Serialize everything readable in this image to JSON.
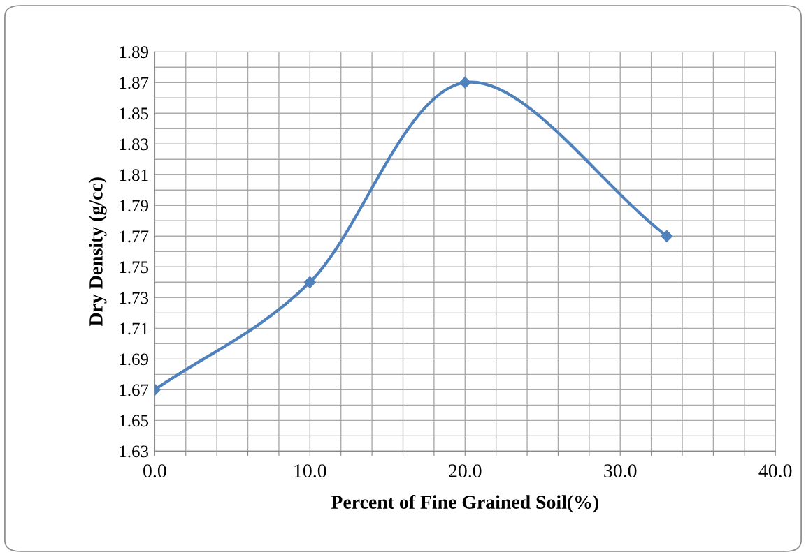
{
  "chart_data": {
    "type": "line",
    "xlabel": "Percent of Fine Grained Soil(%)",
    "ylabel": "Dry Density (g/cc)",
    "x": [
      0,
      10,
      20,
      33
    ],
    "series": [
      {
        "color": "#4f81bd",
        "values": [
          1.67,
          1.74,
          1.87,
          1.77
        ]
      }
    ],
    "marker": "diamond",
    "line_style": "solid",
    "grid": true,
    "legend": false,
    "xlim": [
      0,
      40
    ],
    "ylim": [
      1.63,
      1.89
    ],
    "xticks": [
      {
        "value": 0,
        "label": "0.0"
      },
      {
        "value": 2,
        "label": null
      },
      {
        "value": 4,
        "label": null
      },
      {
        "value": 6,
        "label": null
      },
      {
        "value": 8,
        "label": null
      },
      {
        "value": 10,
        "label": "10.0"
      },
      {
        "value": 12,
        "label": null
      },
      {
        "value": 14,
        "label": null
      },
      {
        "value": 16,
        "label": null
      },
      {
        "value": 18,
        "label": null
      },
      {
        "value": 20,
        "label": "20.0"
      },
      {
        "value": 22,
        "label": null
      },
      {
        "value": 24,
        "label": null
      },
      {
        "value": 26,
        "label": null
      },
      {
        "value": 28,
        "label": null
      },
      {
        "value": 30,
        "label": "30.0"
      },
      {
        "value": 32,
        "label": null
      },
      {
        "value": 34,
        "label": null
      },
      {
        "value": 36,
        "label": null
      },
      {
        "value": 38,
        "label": null
      },
      {
        "value": 40,
        "label": "40.0"
      }
    ],
    "yticks": [
      1.63,
      {
        "value": 1.64,
        "label": null
      },
      1.65,
      {
        "value": 1.66,
        "label": null
      },
      1.67,
      {
        "value": 1.68,
        "label": null
      },
      1.69,
      {
        "value": 1.7,
        "label": null
      },
      1.71,
      {
        "value": 1.72,
        "label": null
      },
      1.73,
      {
        "value": 1.74,
        "label": null
      },
      1.75,
      {
        "value": 1.76,
        "label": null
      },
      1.77,
      {
        "value": 1.78,
        "label": null
      },
      1.79,
      {
        "value": 1.8,
        "label": null
      },
      1.81,
      {
        "value": 1.82,
        "label": null
      },
      1.83,
      {
        "value": 1.84,
        "label": null
      },
      1.85,
      {
        "value": 1.86,
        "label": null
      },
      1.87,
      {
        "value": 1.88,
        "label": null
      },
      1.89
    ]
  }
}
